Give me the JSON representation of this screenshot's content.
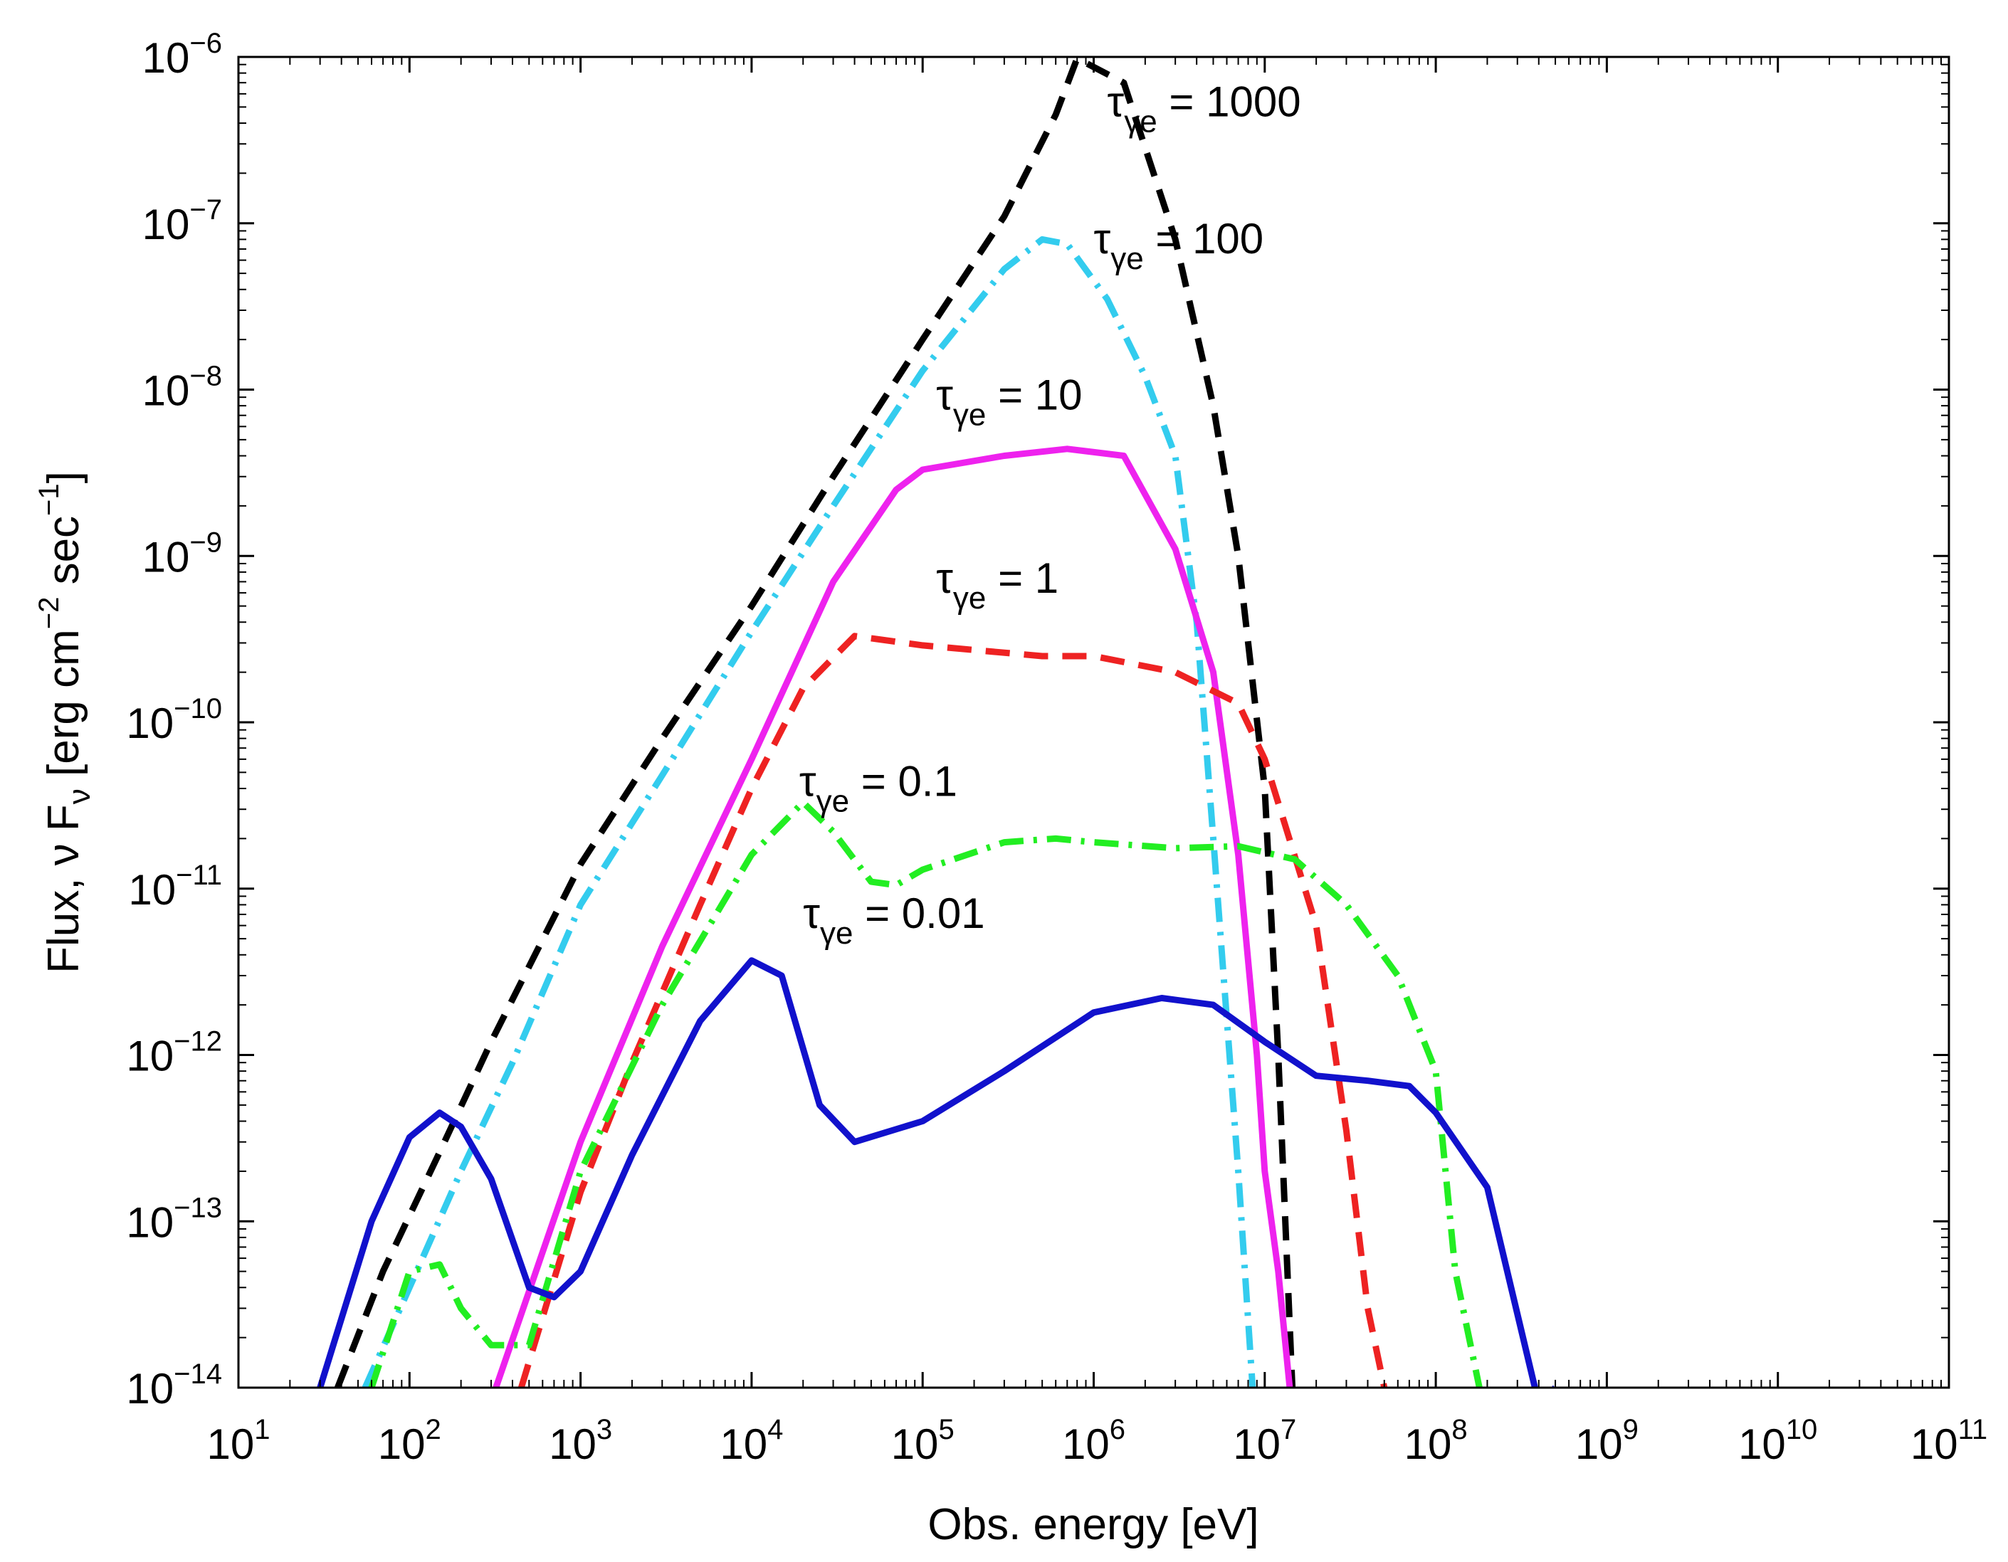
{
  "chart_data": {
    "type": "line",
    "title": "",
    "xlabel": "Obs. energy [eV]",
    "ylabel": "Flux, ν Fν [erg cm⁻² sec⁻¹]",
    "ylabel_parts": {
      "pre": "Flux, ",
      "nu": "ν",
      "F": "F",
      "sub_nu": "ν",
      "bracket_open": "[erg cm",
      "exp1": "−2",
      "mid": "sec",
      "exp2": "−1",
      "bracket_close": "]"
    },
    "xscale": "log",
    "yscale": "log",
    "xlim": [
      10,
      100000000000.0
    ],
    "ylim": [
      1e-14,
      1e-06
    ],
    "x_ticks": [
      {
        "base": "10",
        "exp": "1",
        "value": 10.0
      },
      {
        "base": "10",
        "exp": "2",
        "value": 100.0
      },
      {
        "base": "10",
        "exp": "3",
        "value": 1000.0
      },
      {
        "base": "10",
        "exp": "4",
        "value": 10000.0
      },
      {
        "base": "10",
        "exp": "5",
        "value": 100000.0
      },
      {
        "base": "10",
        "exp": "6",
        "value": 1000000.0
      },
      {
        "base": "10",
        "exp": "7",
        "value": 10000000.0
      },
      {
        "base": "10",
        "exp": "8",
        "value": 100000000.0
      },
      {
        "base": "10",
        "exp": "9",
        "value": 1000000000.0
      },
      {
        "base": "10",
        "exp": "10",
        "value": 10000000000.0
      },
      {
        "base": "10",
        "exp": "11",
        "value": 100000000000.0
      }
    ],
    "y_ticks": [
      {
        "base": "10",
        "exp": "−6",
        "value": 1e-06
      },
      {
        "base": "10",
        "exp": "−7",
        "value": 1e-07
      },
      {
        "base": "10",
        "exp": "−8",
        "value": 1e-08
      },
      {
        "base": "10",
        "exp": "−9",
        "value": 1e-09
      },
      {
        "base": "10",
        "exp": "−10",
        "value": 1e-10
      },
      {
        "base": "10",
        "exp": "−11",
        "value": 1e-11
      },
      {
        "base": "10",
        "exp": "−12",
        "value": 1e-12
      },
      {
        "base": "10",
        "exp": "−13",
        "value": 1e-13
      },
      {
        "base": "10",
        "exp": "−14",
        "value": 1e-14
      }
    ],
    "grid": false,
    "series": [
      {
        "name": "tau_ge = 1000",
        "color": "#000000",
        "dash": "dashed",
        "x": [
          38,
          70,
          150,
          300,
          1000,
          3000,
          10000.0,
          30000.0,
          100000.0,
          300000.0,
          600000.0,
          800000.0,
          1500000.0,
          3000000.0,
          5000000.0,
          7000000.0,
          10000000.0,
          12000000.0,
          14500000.0
        ],
        "y": [
          1e-14,
          5e-14,
          2.6e-13,
          1.2e-12,
          1.4e-11,
          8e-11,
          5e-10,
          3e-09,
          2e-08,
          1.1e-07,
          4.5e-07,
          9.8e-07,
          7e-07,
          8e-08,
          8e-09,
          1e-09,
          4e-11,
          1e-12,
          1e-14
        ]
      },
      {
        "name": "tau_ge = 100",
        "color": "#33ccee",
        "dash": "dashdot",
        "x": [
          55,
          100,
          200,
          400,
          1000,
          3000,
          10000.0,
          30000.0,
          100000.0,
          300000.0,
          500000.0,
          700000.0,
          1200000.0,
          2000000.0,
          3000000.0,
          4000000.0,
          5000000.0,
          7000000.0,
          8500000.0
        ],
        "y": [
          1e-14,
          4e-14,
          2e-13,
          9e-13,
          8e-12,
          4.8e-11,
          3.5e-10,
          2e-09,
          1.3e-08,
          5.3e-08,
          8e-08,
          7.5e-08,
          3.5e-08,
          1.2e-08,
          4e-09,
          4e-10,
          2e-11,
          2e-13,
          1e-14
        ]
      },
      {
        "name": "tau_ge = 10",
        "color": "#ee22ee",
        "dash": "solid",
        "x": [
          320,
          1000,
          3000,
          10000.0,
          30000.0,
          70000.0,
          100000.0,
          300000.0,
          700000.0,
          1500000.0,
          3000000.0,
          5000000.0,
          7000000.0,
          9000000.0,
          10000000.0,
          12000000.0,
          14000000.0
        ],
        "y": [
          1e-14,
          3e-13,
          4.5e-12,
          6e-11,
          7e-10,
          2.5e-09,
          3.3e-09,
          4e-09,
          4.4e-09,
          4e-09,
          1.1e-09,
          2e-10,
          1.6e-11,
          1e-12,
          2e-13,
          5e-14,
          1e-14
        ]
      },
      {
        "name": "tau_ge = 1",
        "color": "#ee2222",
        "dash": "dashed",
        "x": [
          450,
          1000,
          2000,
          5000,
          10000.0,
          20000.0,
          40000.0,
          100000.0,
          500000.0,
          1000000.0,
          3000000.0,
          7000000.0,
          10000000.0,
          20000000.0,
          30000000.0,
          40000000.0,
          50000000.0
        ],
        "y": [
          1e-14,
          1.5e-13,
          9e-13,
          8e-12,
          4e-11,
          1.6e-10,
          3.3e-10,
          2.9e-10,
          2.5e-10,
          2.5e-10,
          2e-10,
          1.3e-10,
          6e-11,
          6e-12,
          3.5e-13,
          3e-14,
          1e-14
        ]
      },
      {
        "name": "tau_ge = 0.1",
        "color": "#22ee22",
        "dash": "dashdot",
        "x": [
          60,
          100,
          150,
          200,
          300,
          500,
          1000,
          3000,
          10000.0,
          20000.0,
          30000.0,
          50000.0,
          70000.0,
          100000.0,
          300000.0,
          600000.0,
          1000000.0,
          3000000.0,
          7000000.0,
          15000000.0,
          30000000.0,
          60000000.0,
          100000000.0,
          130000000.0,
          180000000.0
        ],
        "y": [
          1e-14,
          5e-14,
          5.5e-14,
          3e-14,
          1.8e-14,
          1.8e-14,
          2e-13,
          2e-12,
          1.6e-11,
          3.3e-11,
          2.2e-11,
          1.1e-11,
          1.05e-11,
          1.3e-11,
          1.9e-11,
          2e-11,
          1.9e-11,
          1.75e-11,
          1.8e-11,
          1.5e-11,
          8e-12,
          3e-12,
          8e-13,
          5e-14,
          1e-14
        ]
      },
      {
        "name": "tau_ge = 0.01",
        "color": "#1111cc",
        "dash": "solid",
        "x": [
          30,
          60,
          100,
          150,
          200,
          300,
          500,
          700,
          1000,
          2000,
          5000,
          10000.0,
          15000.0,
          25000.0,
          40000.0,
          100000.0,
          300000.0,
          1000000.0,
          2500000.0,
          5000000.0,
          10000000.0,
          20000000.0,
          40000000.0,
          70000000.0,
          100000000.0,
          200000000.0,
          400000000.0,
          500000000.0
        ],
        "y": [
          1e-14,
          1e-13,
          3.2e-13,
          4.5e-13,
          3.7e-13,
          1.8e-13,
          4e-14,
          3.5e-14,
          5e-14,
          2.5e-13,
          1.6e-12,
          3.7e-12,
          3e-12,
          5e-13,
          3e-13,
          4e-13,
          8e-13,
          1.8e-12,
          2.2e-12,
          2e-12,
          1.2e-12,
          7.5e-13,
          7e-13,
          6.5e-13,
          4.5e-13,
          1.6e-13,
          8e-15,
          1e-14
        ]
      }
    ],
    "annotations": [
      {
        "series": "tau_ge = 1000",
        "tau": "τ",
        "sub": "γe",
        "text": " = 1000",
        "x": 1200000.0,
        "y": 4.4e-07
      },
      {
        "series": "tau_ge = 100",
        "tau": "τ",
        "sub": "γe",
        "text": " = 100",
        "x": 1000000.0,
        "y": 6.6e-08
      },
      {
        "series": "tau_ge = 10",
        "tau": "τ",
        "sub": "γe",
        "text": " = 10",
        "x": 120000.0,
        "y": 7.6e-09
      },
      {
        "series": "tau_ge = 1",
        "tau": "τ",
        "sub": "γe",
        "text": " = 1",
        "x": 120000.0,
        "y": 6e-10
      },
      {
        "series": "tau_ge = 0.1",
        "tau": "τ",
        "sub": "γe",
        "text": " = 0.1",
        "x": 19000.0,
        "y": 3.6e-11
      },
      {
        "series": "tau_ge = 0.01",
        "tau": "τ",
        "sub": "γe",
        "text": " = 0.01",
        "x": 20000.0,
        "y": 5.8e-12
      }
    ]
  }
}
